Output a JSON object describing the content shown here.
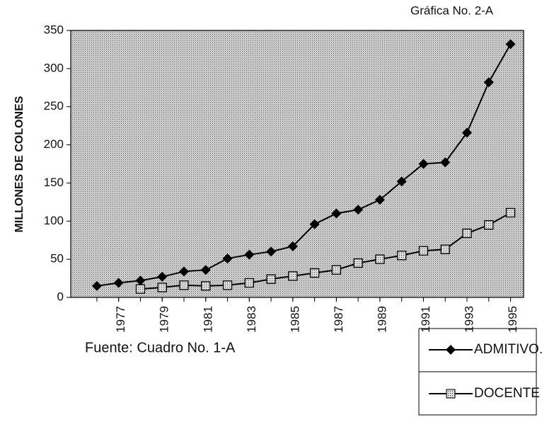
{
  "chart_data": {
    "type": "line",
    "title": "Gráfica No. 2-A",
    "ylabel": "MILLONES DE COLONES",
    "source": "Fuente: Cuadro No. 1-A",
    "x": [
      1976,
      1977,
      1978,
      1979,
      1980,
      1981,
      1982,
      1983,
      1984,
      1985,
      1986,
      1987,
      1988,
      1989,
      1990,
      1991,
      1992,
      1993,
      1994,
      1995
    ],
    "series": [
      {
        "name": "ADMITIVO.",
        "color": "#000000",
        "marker": "diamond",
        "values": [
          15,
          19,
          22,
          27,
          34,
          36,
          51,
          56,
          60,
          67,
          96,
          110,
          115,
          128,
          152,
          175,
          177,
          216,
          282,
          332
        ]
      },
      {
        "name": "DOCENTE",
        "color": "#000000",
        "marker": "square",
        "values": [
          null,
          null,
          11,
          13,
          16,
          15,
          16,
          19,
          24,
          28,
          32,
          36,
          45,
          50,
          55,
          61,
          63,
          84,
          95,
          111
        ]
      }
    ],
    "xlim": [
      1974.8,
      1995.6
    ],
    "xticks": [
      1977,
      1979,
      1981,
      1983,
      1985,
      1987,
      1989,
      1991,
      1993,
      1995
    ],
    "ylim": [
      0,
      350
    ],
    "yticks": [
      0,
      50,
      100,
      150,
      200,
      250,
      300,
      350
    ],
    "legend": "bottom-right"
  }
}
